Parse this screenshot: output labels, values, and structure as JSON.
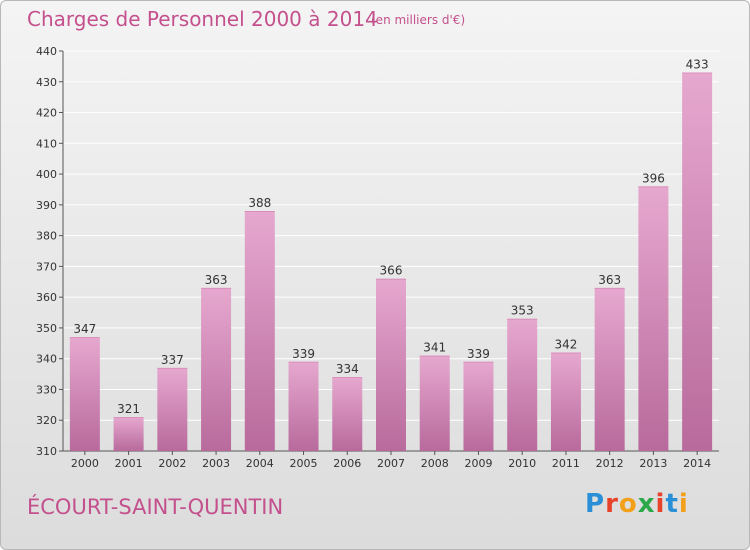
{
  "title": "Charges de Personnel 2000 à 2014",
  "subtitle": "(en milliers d'€)",
  "commune": "ÉCOURT-SAINT-QUENTIN",
  "logo": {
    "text": "Proxiti",
    "letter_colors": [
      "#2a8fd6",
      "#e8432a",
      "#f2a019",
      "#2aa84a",
      "#e8432a",
      "#2a8fd6",
      "#f2a019"
    ]
  },
  "colors": {
    "title": "#c4508d",
    "bar_top": "#e6a8cf",
    "bar_bottom": "#b86a9c",
    "grid": "#ffffff",
    "axis_text": "#333333"
  },
  "chart_data": {
    "type": "bar",
    "categories": [
      "2000",
      "2001",
      "2002",
      "2003",
      "2004",
      "2005",
      "2006",
      "2007",
      "2008",
      "2009",
      "2010",
      "2011",
      "2012",
      "2013",
      "2014"
    ],
    "values": [
      347,
      321,
      337,
      363,
      388,
      339,
      334,
      366,
      341,
      339,
      353,
      342,
      363,
      396,
      433
    ],
    "ylim": [
      310,
      440
    ],
    "yticks": [
      310,
      320,
      330,
      340,
      350,
      360,
      370,
      380,
      390,
      400,
      410,
      420,
      430,
      440
    ],
    "grid": true,
    "data_labels": true
  }
}
